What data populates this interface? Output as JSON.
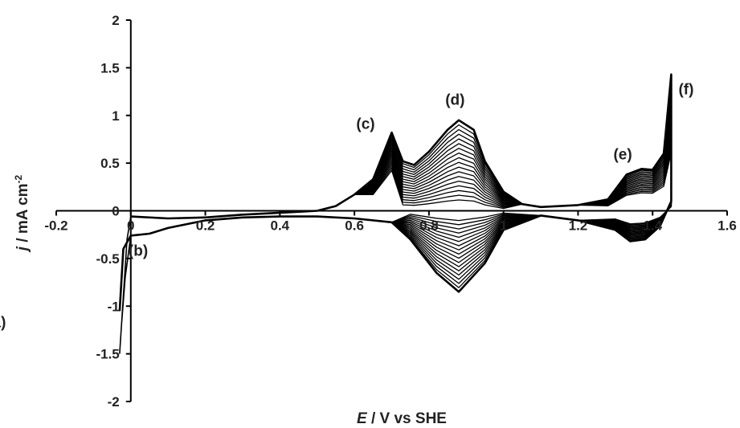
{
  "chart_data": {
    "type": "line",
    "xlabel_var": "E",
    "xlabel_rest": " / V vs SHE",
    "ylabel_var": "j",
    "ylabel_rest": " / mA cm",
    "ylabel_sup": "-2",
    "xlim": [
      -0.2,
      1.6
    ],
    "ylim": [
      -2,
      2
    ],
    "x_ticks": [
      "-0.2",
      "0",
      "0.2",
      "0.4",
      "0.6",
      "0.8",
      "1",
      "1.2",
      "1.4",
      "1.6"
    ],
    "y_ticks": [
      "2",
      "1.5",
      "1",
      "0.5",
      "0",
      "-0.5",
      "-1",
      "-1.5",
      "-2"
    ],
    "grid": false,
    "series_count": 18,
    "color": "#000000",
    "annotations": [
      {
        "label": "(a)",
        "x": -0.36,
        "y": -1.22
      },
      {
        "label": "(b)",
        "x": 0.02,
        "y": -0.47
      },
      {
        "label": "(c)",
        "x": 0.63,
        "y": 0.86
      },
      {
        "label": "(d)",
        "x": 0.87,
        "y": 1.11
      },
      {
        "label": "(e)",
        "x": 1.32,
        "y": 0.54
      },
      {
        "label": "(f)",
        "x": 1.49,
        "y": 1.22
      }
    ],
    "anodic_sweep_outermost": [
      [
        0.0,
        -0.06
      ],
      [
        0.1,
        -0.08
      ],
      [
        0.2,
        -0.07
      ],
      [
        0.3,
        -0.04
      ],
      [
        0.4,
        -0.02
      ],
      [
        0.5,
        0.0
      ],
      [
        0.55,
        0.05
      ],
      [
        0.6,
        0.17
      ],
      [
        0.65,
        0.33
      ],
      [
        0.7,
        0.82
      ],
      [
        0.73,
        0.52
      ],
      [
        0.76,
        0.48
      ],
      [
        0.8,
        0.62
      ],
      [
        0.85,
        0.85
      ],
      [
        0.88,
        0.95
      ],
      [
        0.92,
        0.85
      ],
      [
        0.95,
        0.52
      ],
      [
        1.0,
        0.2
      ],
      [
        1.05,
        0.07
      ],
      [
        1.1,
        0.04
      ],
      [
        1.2,
        0.06
      ],
      [
        1.28,
        0.12
      ],
      [
        1.33,
        0.38
      ],
      [
        1.37,
        0.44
      ],
      [
        1.4,
        0.43
      ],
      [
        1.43,
        0.6
      ],
      [
        1.45,
        1.43
      ]
    ],
    "cathodic_sweep_outermost": [
      [
        1.45,
        1.43
      ],
      [
        1.45,
        0.1
      ],
      [
        1.42,
        -0.16
      ],
      [
        1.38,
        -0.3
      ],
      [
        1.34,
        -0.32
      ],
      [
        1.3,
        -0.2
      ],
      [
        1.2,
        -0.1
      ],
      [
        1.1,
        -0.05
      ],
      [
        1.0,
        -0.2
      ],
      [
        0.95,
        -0.55
      ],
      [
        0.88,
        -0.85
      ],
      [
        0.82,
        -0.65
      ],
      [
        0.75,
        -0.3
      ],
      [
        0.7,
        -0.12
      ],
      [
        0.6,
        -0.08
      ],
      [
        0.5,
        -0.06
      ],
      [
        0.4,
        -0.06
      ],
      [
        0.3,
        -0.07
      ],
      [
        0.2,
        -0.1
      ],
      [
        0.1,
        -0.18
      ],
      [
        0.05,
        -0.24
      ],
      [
        0.0,
        -0.26
      ],
      [
        -0.02,
        -0.4
      ],
      [
        -0.03,
        -1.05
      ]
    ]
  }
}
